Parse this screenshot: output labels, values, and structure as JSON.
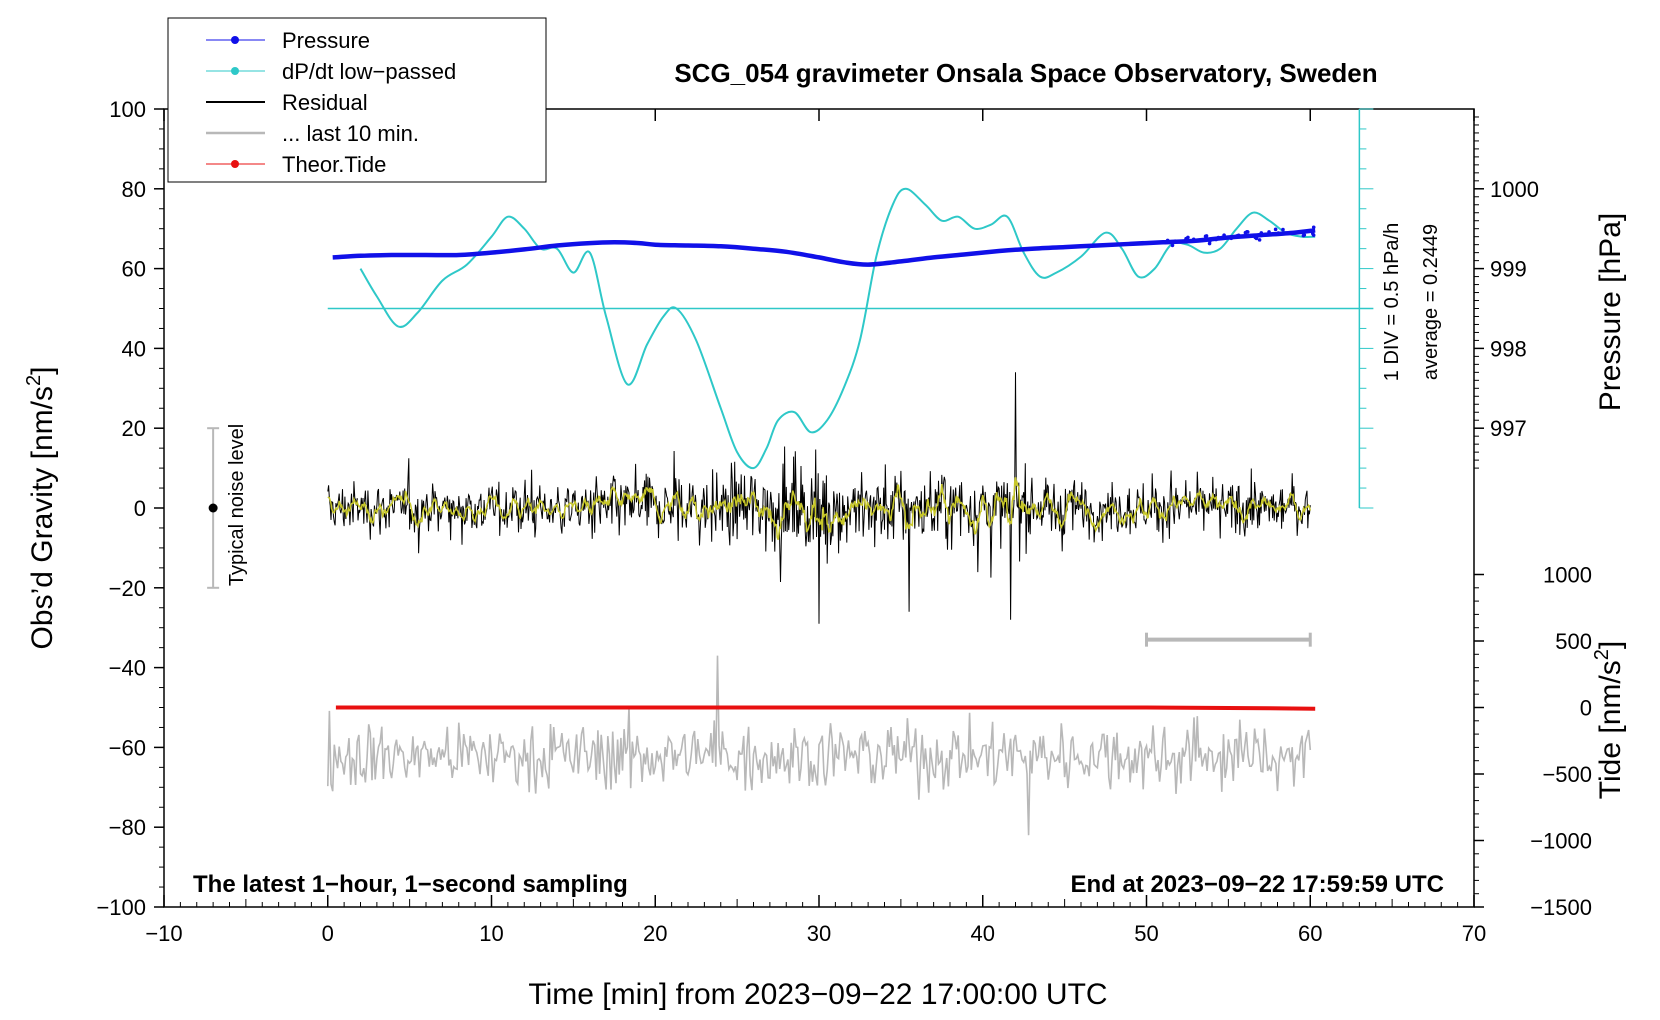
{
  "chart_data": {
    "type": "line",
    "title": "SCG_054 gravimeter Onsala Space Observatory, Sweden",
    "xlabel": "Time [min] from 2023−09−22 17:00:00 UTC",
    "ylabel": "Obs’d Gravity [nm/s",
    "ylabel_sup": "2",
    "ylabel_close": "]",
    "y2label_pressure": "Pressure [hPa]",
    "y2label_tide": "Tide [nm/s",
    "y2label_tide_sup": "2",
    "y2label_tide_close": "]",
    "xlim": [
      -10,
      70
    ],
    "ylim": [
      -100,
      100
    ],
    "xticks": [
      -10,
      0,
      10,
      20,
      30,
      40,
      50,
      60,
      70
    ],
    "xtick_labels": [
      "−10",
      "0",
      "10",
      "20",
      "30",
      "40",
      "50",
      "60",
      "70"
    ],
    "yticks": [
      100,
      80,
      60,
      40,
      20,
      0,
      -20,
      -40,
      -60,
      -80,
      -100
    ],
    "ytick_labels": [
      "100",
      "80",
      "60",
      "40",
      "20",
      "0",
      "−20",
      "−40",
      "−60",
      "−80",
      "−100"
    ],
    "pressure_ticks": [
      {
        "label": "1000",
        "value": 1000
      },
      {
        "label": "999",
        "value": 999
      },
      {
        "label": "998",
        "value": 998
      },
      {
        "label": "997",
        "value": 997
      }
    ],
    "tide_ticks": [
      {
        "label": "1000",
        "value": 1000
      },
      {
        "label": "500",
        "value": 500
      },
      {
        "label": "0",
        "value": 0
      },
      {
        "label": "−500",
        "value": -500
      },
      {
        "label": "−1000",
        "value": -1000
      },
      {
        "label": "−1500",
        "value": -1500
      }
    ],
    "legend": [
      {
        "label": "Pressure",
        "color": "#1010e8",
        "marker": true
      },
      {
        "label": "dP/dt low−passed",
        "color": "#2ec8c8",
        "marker": true
      },
      {
        "label": "Residual",
        "color": "#000000",
        "marker": false
      },
      {
        "label": "... last 10 min.",
        "color": "#b8b8b8",
        "marker": false
      },
      {
        "label": "Theor.Tide",
        "color": "#e81010",
        "marker": true
      }
    ],
    "legend_position": "top-left",
    "bottom_left_note": "The latest 1−hour, 1−second sampling",
    "bottom_right_note": "End at 2023−09−22 17:59:59 UTC",
    "noise_label": "Typical noise level",
    "noise_bar": {
      "x": -7,
      "center": 0,
      "low": -20,
      "high": 20
    },
    "dpdt_scale_label": "1 DIV = 0.5 hPa/h",
    "dpdt_average_label": "average = 0.2449",
    "dpdt_scale_axis_x": 63,
    "dpdt_baseline_y": 50,
    "dpdt_scale_top": 100,
    "dpdt_scale_bottom": 0,
    "dpdt_scale_div": 5,
    "last10_bracket": {
      "x_start": 50,
      "x_end": 60,
      "y": -33
    },
    "series": [
      {
        "name": "Pressure",
        "color": "#1010e8",
        "unit": "hPa",
        "x": [
          0.3,
          2,
          4,
          6,
          8,
          10,
          12,
          14,
          16,
          17.5,
          19,
          20,
          22,
          24,
          26,
          28,
          30,
          31.5,
          33,
          35,
          37,
          39,
          41,
          43,
          45,
          47,
          49,
          51,
          53,
          55,
          57,
          59,
          60.3
        ],
        "values": [
          999.14,
          999.16,
          999.17,
          999.17,
          999.17,
          999.2,
          999.24,
          999.29,
          999.32,
          999.33,
          999.32,
          999.3,
          999.29,
          999.28,
          999.25,
          999.21,
          999.14,
          999.08,
          999.05,
          999.09,
          999.14,
          999.18,
          999.22,
          999.25,
          999.27,
          999.29,
          999.31,
          999.33,
          999.35,
          999.39,
          999.42,
          999.45,
          999.48
        ]
      },
      {
        "name": "dP/dt low-passed",
        "color": "#2ec8c8",
        "unit": "nm/s2 axis",
        "x": [
          2,
          3,
          4.3,
          5.5,
          7,
          8.5,
          10,
          11,
          12,
          13,
          14,
          15,
          16,
          17,
          18.3,
          19.5,
          20.5,
          21.3,
          22.5,
          24,
          25,
          26,
          26.8,
          27.5,
          28.5,
          29.5,
          30.5,
          31.5,
          32.5,
          33.5,
          34.5,
          35.3,
          36.5,
          37.5,
          38.5,
          39.5,
          40.5,
          41.5,
          42.5,
          43.5,
          44.5,
          46,
          47.5,
          48.5,
          49.5,
          50.5,
          51.5,
          52.5,
          53.5,
          54.5,
          55.5,
          56.5,
          57.5,
          58.5,
          59.5,
          60.3
        ],
        "values": [
          60,
          53,
          45.5,
          49,
          57,
          61,
          68,
          73,
          70,
          65,
          65,
          59,
          64,
          48,
          31,
          41,
          48,
          50,
          42,
          25,
          14,
          10,
          15,
          22,
          24,
          19,
          22,
          30,
          42,
          63,
          76,
          80,
          76,
          72,
          73,
          70,
          71,
          73,
          64,
          58,
          59,
          63,
          69,
          65,
          58,
          60,
          66,
          66,
          64,
          65,
          70,
          74,
          72,
          69,
          68,
          68
        ]
      },
      {
        "name": "Theor.Tide",
        "color": "#e81010",
        "unit": "nm/s2",
        "x": [
          0.5,
          10,
          20,
          30,
          40,
          50,
          57.5,
          60.3
        ],
        "values": [
          0,
          0,
          0,
          0,
          0,
          0,
          -5,
          -10
        ]
      }
    ],
    "residual": {
      "color": "#000000",
      "x_start": 0,
      "x_end": 60,
      "amplitude_typical": 8,
      "spikes": [
        {
          "x": 30,
          "y": -29
        },
        {
          "x": 42,
          "y": 34
        },
        {
          "x": 41.7,
          "y": -28
        },
        {
          "x": 35.5,
          "y": -26
        }
      ]
    },
    "residual_smoothed": {
      "color": "#c8c82a"
    },
    "last10": {
      "color": "#b8b8b8",
      "x_start": 0,
      "x_end": 60,
      "baseline": -62,
      "amplitude_typical": 10,
      "top_peak": -37,
      "bottom_peak": -82
    }
  }
}
